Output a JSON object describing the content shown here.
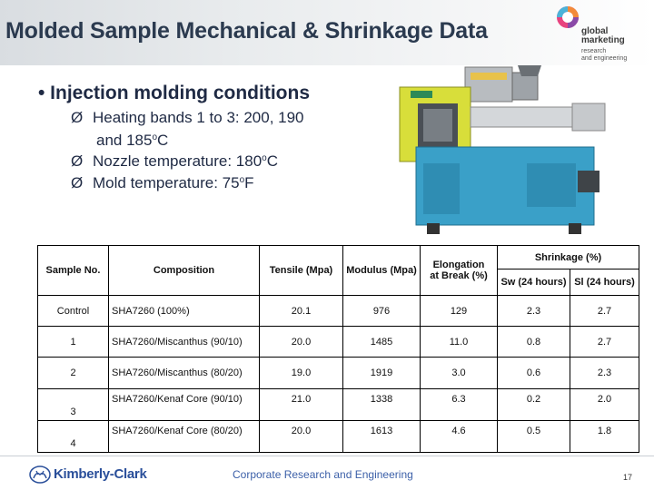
{
  "title": "Molded Sample Mechanical & Shrinkage Data",
  "logo": {
    "line1": "global",
    "line2": "marketing",
    "line3": "research",
    "line4": "and engineering"
  },
  "bullet_main": "• Injection molding conditions",
  "sub_items": [
    {
      "arrow": "Ø",
      "text_a": "Heating bands 1 to 3: 200, 190",
      "text_b": "and 185",
      "sup_b": "o",
      "text_b2": "C"
    },
    {
      "arrow": "Ø",
      "text": "Nozzle temperature: 180",
      "sup": "o",
      "text2": "C"
    },
    {
      "arrow": "Ø",
      "text": "Mold temperature: 75",
      "sup": "o",
      "text2": "F"
    }
  ],
  "table": {
    "headers": {
      "sample": "Sample No.",
      "composition": "Composition",
      "tensile": "Tensile (Mpa)",
      "modulus": "Modulus (Mpa)",
      "elongation": "Elongation at Break (%)",
      "shrinkage": "Shrinkage (%)",
      "sw": "Sw (24 hours)",
      "sl": "Sl (24 hours)"
    },
    "rows": [
      {
        "sample": "Control",
        "composition": "SHA7260 (100%)",
        "tensile": "20.1",
        "modulus": "976",
        "elongation": "129",
        "sw": "2.3",
        "sl": "2.7"
      },
      {
        "sample": "1",
        "composition": "SHA7260/Miscanthus (90/10)",
        "tensile": "20.0",
        "modulus": "1485",
        "elongation": "11.0",
        "sw": "0.8",
        "sl": "2.7"
      },
      {
        "sample": "2",
        "composition": "SHA7260/Miscanthus (80/20)",
        "tensile": "19.0",
        "modulus": "1919",
        "elongation": "3.0",
        "sw": "0.6",
        "sl": "2.3"
      },
      {
        "sample": "3",
        "composition": "SHA7260/Kenaf Core (90/10)",
        "tensile": "21.0",
        "modulus": "1338",
        "elongation": "6.3",
        "sw": "0.2",
        "sl": "2.0"
      },
      {
        "sample": "4",
        "composition": "SHA7260/Kenaf Core (80/20)",
        "tensile": "20.0",
        "modulus": "1613",
        "elongation": "4.6",
        "sw": "0.5",
        "sl": "1.8"
      }
    ]
  },
  "footer": {
    "brand": "Kimberly-Clark",
    "center": "Corporate Research and Engineering",
    "page": "17"
  }
}
